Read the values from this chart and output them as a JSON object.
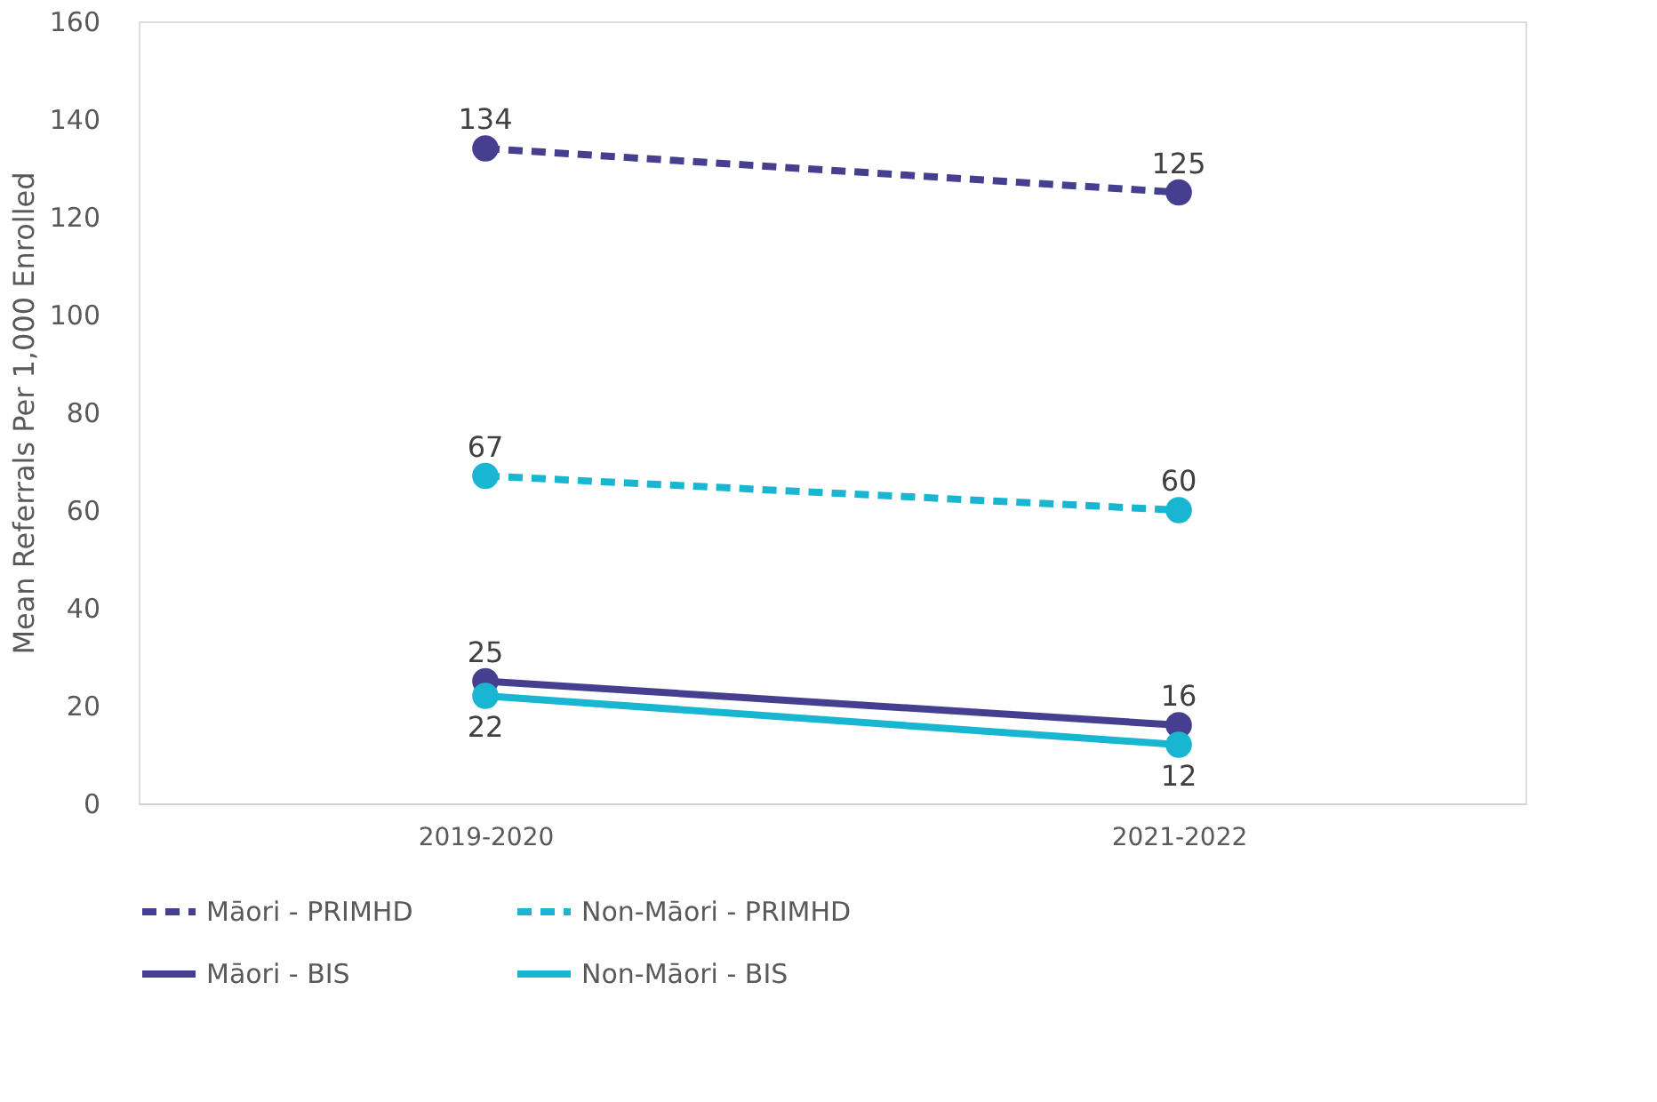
{
  "chart_data": {
    "type": "line",
    "ylabel": "Mean Referrals Per 1,000 Enrolled",
    "categories": [
      "2019-2020",
      "2021-2022"
    ],
    "series": [
      {
        "name": "Māori - PRIMHD",
        "color": "#463f8f",
        "values": [
          134,
          125
        ],
        "line_style": "dashed"
      },
      {
        "name": "Non-Māori - PRIMHD",
        "color": "#19b6d1",
        "values": [
          67,
          60
        ],
        "line_style": "dashed"
      },
      {
        "name": "Māori - BIS",
        "color": "#463f8f",
        "values": [
          25,
          16
        ],
        "line_style": "solid"
      },
      {
        "name": "Non-Māori - BIS",
        "color": "#19b6d1",
        "values": [
          22,
          12
        ],
        "line_style": "solid"
      }
    ],
    "ylim": [
      0,
      160
    ],
    "yticks": [
      0,
      20,
      40,
      60,
      80,
      100,
      120,
      140,
      160
    ],
    "grid": false,
    "legend": "bottom",
    "marker": "circle",
    "data_labels": true
  }
}
